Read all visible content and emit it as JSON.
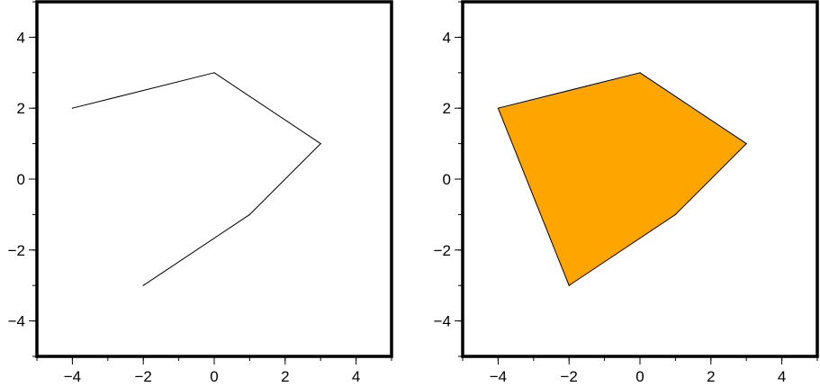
{
  "chart_data": [
    {
      "type": "line",
      "panel": "left",
      "fill": false,
      "line_color": "#000000",
      "x": [
        -4,
        0,
        3,
        1,
        -2
      ],
      "y": [
        2,
        3,
        1,
        -1,
        -3
      ],
      "xlim": [
        -5,
        5
      ],
      "ylim": [
        -5,
        5
      ],
      "xticks": [
        -4,
        -2,
        0,
        2,
        4
      ],
      "yticks": [
        -4,
        -2,
        0,
        2,
        4
      ],
      "xtick_labels": [
        "−4",
        "−2",
        "0",
        "2",
        "4"
      ],
      "ytick_labels": [
        "−4",
        "−2",
        "0",
        "2",
        "4"
      ],
      "title": "",
      "xlabel": "",
      "ylabel": "",
      "grid": false
    },
    {
      "type": "area",
      "panel": "right",
      "fill": true,
      "fill_color": "#ffa500",
      "line_color": "#000000",
      "x": [
        -4,
        0,
        3,
        1,
        -2
      ],
      "y": [
        2,
        3,
        1,
        -1,
        -3
      ],
      "xlim": [
        -5,
        5
      ],
      "ylim": [
        -5,
        5
      ],
      "xticks": [
        -4,
        -2,
        0,
        2,
        4
      ],
      "yticks": [
        -4,
        -2,
        0,
        2,
        4
      ],
      "xtick_labels": [
        "−4",
        "−2",
        "0",
        "2",
        "4"
      ],
      "ytick_labels": [
        "−4",
        "−2",
        "0",
        "2",
        "4"
      ],
      "title": "",
      "xlabel": "",
      "ylabel": "",
      "grid": false
    }
  ]
}
